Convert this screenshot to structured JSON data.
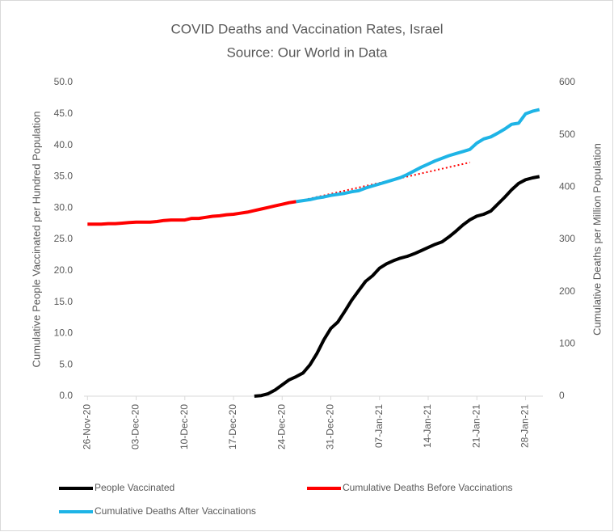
{
  "chart_data": {
    "type": "line",
    "title": "COVID Deaths and Vaccination Rates, Israel",
    "subtitle": "Source: Our World in Data",
    "ylabel": "Cumulative People Vaccinated per Hundred Population",
    "y2label": "Cumulative Deaths per Million Population",
    "categories": [
      "26-Nov-20",
      null,
      null,
      null,
      null,
      null,
      null,
      "03-Dec-20",
      null,
      null,
      null,
      null,
      null,
      null,
      "10-Dec-20",
      null,
      null,
      null,
      null,
      null,
      null,
      "17-Dec-20",
      null,
      null,
      null,
      null,
      null,
      null,
      "24-Dec-20",
      null,
      null,
      null,
      null,
      null,
      null,
      "31-Dec-20",
      null,
      null,
      null,
      null,
      null,
      null,
      "07-Jan-21",
      null,
      null,
      null,
      null,
      null,
      null,
      "14-Jan-21",
      null,
      null,
      null,
      null,
      null,
      null,
      "21-Jan-21",
      null,
      null,
      null,
      null,
      null,
      null,
      "28-Jan-21",
      null,
      null
    ],
    "ylim": [
      0,
      50
    ],
    "yticks": [
      {
        "value": 0,
        "label": "0.0"
      },
      {
        "value": 5,
        "label": "5.0"
      },
      {
        "value": 10,
        "label": "10.0"
      },
      {
        "value": 15,
        "label": "15.0"
      },
      {
        "value": 20,
        "label": "20.0"
      },
      {
        "value": 25,
        "label": "25.0"
      },
      {
        "value": 30,
        "label": "30.0"
      },
      {
        "value": 35,
        "label": "35.0"
      },
      {
        "value": 40,
        "label": "40.0"
      },
      {
        "value": 45,
        "label": "45.0"
      },
      {
        "value": 50,
        "label": "50.0"
      }
    ],
    "y2lim": [
      0,
      600
    ],
    "y2ticks": [
      0,
      100,
      200,
      300,
      400,
      500,
      600
    ],
    "series": [
      {
        "name": "People Vaccinated",
        "color": "#000000",
        "values": [
          null,
          null,
          null,
          null,
          null,
          null,
          null,
          null,
          null,
          null,
          null,
          null,
          null,
          null,
          null,
          null,
          null,
          null,
          null,
          null,
          null,
          null,
          null,
          null,
          0,
          0.1,
          0.4,
          1.0,
          1.8,
          2.6,
          3.1,
          3.7,
          5.0,
          6.8,
          9.0,
          10.8,
          11.8,
          13.5,
          15.3,
          16.8,
          18.3,
          19.2,
          20.4,
          21.1,
          21.6,
          22.0,
          22.3,
          22.7,
          23.2,
          23.7,
          24.2,
          24.6,
          25.4,
          26.3,
          27.3,
          28.1,
          28.7,
          29.0,
          29.5,
          30.6,
          31.7,
          32.9,
          33.9,
          34.5,
          34.8,
          35.0
        ]
      },
      {
        "name": "Cumulative Deaths Before Vaccinations",
        "color": "#ff0000",
        "axis": "y2",
        "values": [
          329,
          329,
          329,
          330,
          330,
          331,
          332,
          333,
          333,
          333,
          334,
          336,
          337,
          337,
          337,
          340,
          340,
          342,
          344,
          345,
          347,
          348,
          350,
          352,
          355,
          358,
          361,
          364,
          367,
          370,
          372,
          null,
          null,
          null,
          null,
          null,
          null,
          null,
          null,
          null,
          null,
          null,
          null,
          null,
          null,
          null,
          null,
          null,
          null,
          null,
          null,
          null,
          null,
          null,
          null,
          null,
          null,
          null,
          null,
          null,
          null,
          null,
          null,
          null,
          null,
          null
        ]
      },
      {
        "name": "Cumulative Deaths After Vaccinations",
        "color": "#1eb4e6",
        "axis": "y2",
        "values": [
          null,
          null,
          null,
          null,
          null,
          null,
          null,
          null,
          null,
          null,
          null,
          null,
          null,
          null,
          null,
          null,
          null,
          null,
          null,
          null,
          null,
          null,
          null,
          null,
          null,
          null,
          null,
          null,
          null,
          null,
          372,
          374,
          376,
          379,
          381,
          384,
          386,
          388,
          391,
          393,
          398,
          402,
          406,
          410,
          414,
          418,
          424,
          431,
          438,
          444,
          450,
          455,
          460,
          464,
          468,
          472,
          484,
          492,
          496,
          503,
          511,
          520,
          522,
          540,
          545,
          548
        ]
      }
    ],
    "projection": {
      "color": "#ff0000",
      "axis": "y2",
      "dashed": true,
      "values": [
        null,
        null,
        null,
        null,
        null,
        null,
        null,
        null,
        null,
        null,
        null,
        null,
        null,
        null,
        null,
        null,
        null,
        null,
        null,
        null,
        null,
        null,
        null,
        null,
        null,
        null,
        null,
        null,
        null,
        null,
        372,
        375,
        378,
        381,
        384,
        387,
        390,
        393,
        396,
        399,
        402,
        405,
        408,
        411,
        414,
        417,
        420,
        423,
        426,
        429,
        432,
        435,
        438,
        441,
        444,
        447,
        null,
        null,
        null,
        null,
        null,
        null,
        null,
        null,
        null,
        null
      ]
    }
  }
}
